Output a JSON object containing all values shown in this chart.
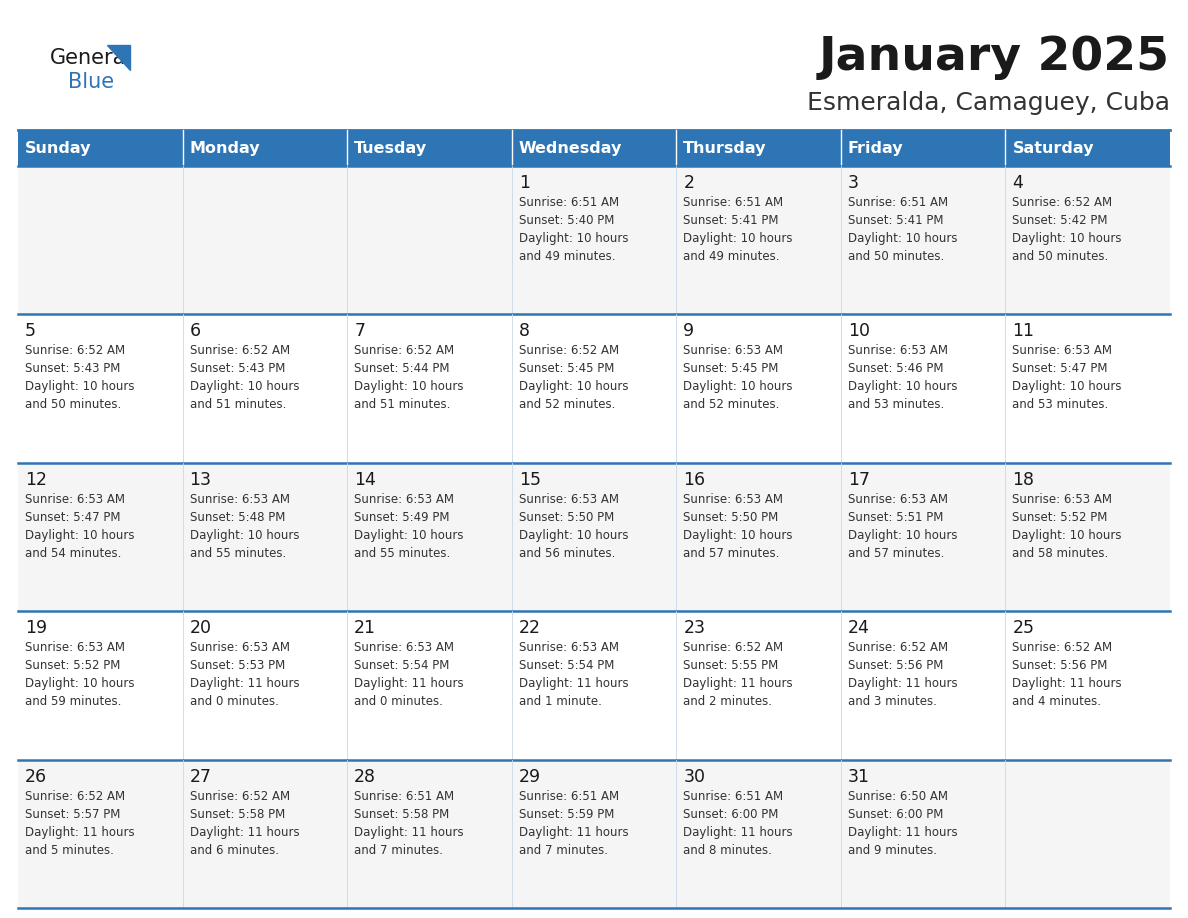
{
  "title": "January 2025",
  "subtitle": "Esmeralda, Camaguey, Cuba",
  "header_bg": "#2E75B6",
  "header_text_color": "#FFFFFF",
  "cell_bg_odd": "#F2F2F2",
  "cell_bg_even": "#FFFFFF",
  "border_color": "#2E75B6",
  "grid_line_color": "#B0C4D8",
  "text_color": "#222222",
  "info_color": "#444444",
  "day_names": [
    "Sunday",
    "Monday",
    "Tuesday",
    "Wednesday",
    "Thursday",
    "Friday",
    "Saturday"
  ],
  "calendar_data": [
    [
      {
        "day": null,
        "info": null
      },
      {
        "day": null,
        "info": null
      },
      {
        "day": null,
        "info": null
      },
      {
        "day": 1,
        "info": "Sunrise: 6:51 AM\nSunset: 5:40 PM\nDaylight: 10 hours\nand 49 minutes."
      },
      {
        "day": 2,
        "info": "Sunrise: 6:51 AM\nSunset: 5:41 PM\nDaylight: 10 hours\nand 49 minutes."
      },
      {
        "day": 3,
        "info": "Sunrise: 6:51 AM\nSunset: 5:41 PM\nDaylight: 10 hours\nand 50 minutes."
      },
      {
        "day": 4,
        "info": "Sunrise: 6:52 AM\nSunset: 5:42 PM\nDaylight: 10 hours\nand 50 minutes."
      }
    ],
    [
      {
        "day": 5,
        "info": "Sunrise: 6:52 AM\nSunset: 5:43 PM\nDaylight: 10 hours\nand 50 minutes."
      },
      {
        "day": 6,
        "info": "Sunrise: 6:52 AM\nSunset: 5:43 PM\nDaylight: 10 hours\nand 51 minutes."
      },
      {
        "day": 7,
        "info": "Sunrise: 6:52 AM\nSunset: 5:44 PM\nDaylight: 10 hours\nand 51 minutes."
      },
      {
        "day": 8,
        "info": "Sunrise: 6:52 AM\nSunset: 5:45 PM\nDaylight: 10 hours\nand 52 minutes."
      },
      {
        "day": 9,
        "info": "Sunrise: 6:53 AM\nSunset: 5:45 PM\nDaylight: 10 hours\nand 52 minutes."
      },
      {
        "day": 10,
        "info": "Sunrise: 6:53 AM\nSunset: 5:46 PM\nDaylight: 10 hours\nand 53 minutes."
      },
      {
        "day": 11,
        "info": "Sunrise: 6:53 AM\nSunset: 5:47 PM\nDaylight: 10 hours\nand 53 minutes."
      }
    ],
    [
      {
        "day": 12,
        "info": "Sunrise: 6:53 AM\nSunset: 5:47 PM\nDaylight: 10 hours\nand 54 minutes."
      },
      {
        "day": 13,
        "info": "Sunrise: 6:53 AM\nSunset: 5:48 PM\nDaylight: 10 hours\nand 55 minutes."
      },
      {
        "day": 14,
        "info": "Sunrise: 6:53 AM\nSunset: 5:49 PM\nDaylight: 10 hours\nand 55 minutes."
      },
      {
        "day": 15,
        "info": "Sunrise: 6:53 AM\nSunset: 5:50 PM\nDaylight: 10 hours\nand 56 minutes."
      },
      {
        "day": 16,
        "info": "Sunrise: 6:53 AM\nSunset: 5:50 PM\nDaylight: 10 hours\nand 57 minutes."
      },
      {
        "day": 17,
        "info": "Sunrise: 6:53 AM\nSunset: 5:51 PM\nDaylight: 10 hours\nand 57 minutes."
      },
      {
        "day": 18,
        "info": "Sunrise: 6:53 AM\nSunset: 5:52 PM\nDaylight: 10 hours\nand 58 minutes."
      }
    ],
    [
      {
        "day": 19,
        "info": "Sunrise: 6:53 AM\nSunset: 5:52 PM\nDaylight: 10 hours\nand 59 minutes."
      },
      {
        "day": 20,
        "info": "Sunrise: 6:53 AM\nSunset: 5:53 PM\nDaylight: 11 hours\nand 0 minutes."
      },
      {
        "day": 21,
        "info": "Sunrise: 6:53 AM\nSunset: 5:54 PM\nDaylight: 11 hours\nand 0 minutes."
      },
      {
        "day": 22,
        "info": "Sunrise: 6:53 AM\nSunset: 5:54 PM\nDaylight: 11 hours\nand 1 minute."
      },
      {
        "day": 23,
        "info": "Sunrise: 6:52 AM\nSunset: 5:55 PM\nDaylight: 11 hours\nand 2 minutes."
      },
      {
        "day": 24,
        "info": "Sunrise: 6:52 AM\nSunset: 5:56 PM\nDaylight: 11 hours\nand 3 minutes."
      },
      {
        "day": 25,
        "info": "Sunrise: 6:52 AM\nSunset: 5:56 PM\nDaylight: 11 hours\nand 4 minutes."
      }
    ],
    [
      {
        "day": 26,
        "info": "Sunrise: 6:52 AM\nSunset: 5:57 PM\nDaylight: 11 hours\nand 5 minutes."
      },
      {
        "day": 27,
        "info": "Sunrise: 6:52 AM\nSunset: 5:58 PM\nDaylight: 11 hours\nand 6 minutes."
      },
      {
        "day": 28,
        "info": "Sunrise: 6:51 AM\nSunset: 5:58 PM\nDaylight: 11 hours\nand 7 minutes."
      },
      {
        "day": 29,
        "info": "Sunrise: 6:51 AM\nSunset: 5:59 PM\nDaylight: 11 hours\nand 7 minutes."
      },
      {
        "day": 30,
        "info": "Sunrise: 6:51 AM\nSunset: 6:00 PM\nDaylight: 11 hours\nand 8 minutes."
      },
      {
        "day": 31,
        "info": "Sunrise: 6:50 AM\nSunset: 6:00 PM\nDaylight: 11 hours\nand 9 minutes."
      },
      {
        "day": null,
        "info": null
      }
    ]
  ],
  "logo_general_color": "#1a1a1a",
  "logo_blue_color": "#2E75B6",
  "logo_triangle_color": "#2E75B6"
}
